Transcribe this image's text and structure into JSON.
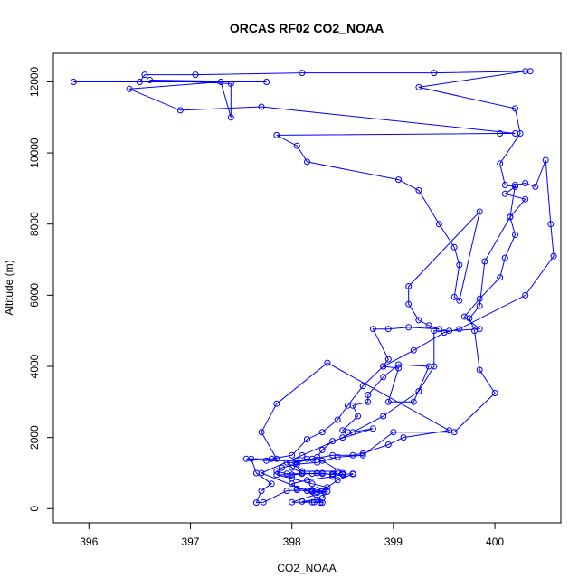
{
  "chart_data": {
    "type": "scatter",
    "title": "ORCAS RF02 CO2_NOAA",
    "xlabel": "CO2_NOAA",
    "ylabel": "Altitude (m)",
    "xlim": [
      395.65,
      400.65
    ],
    "ylim": [
      -400,
      12800
    ],
    "xticks": [
      396,
      397,
      398,
      399,
      400
    ],
    "yticks": [
      0,
      2000,
      4000,
      6000,
      8000,
      10000,
      12000
    ],
    "grid": false,
    "legend": "none",
    "color": "#0000ff",
    "marker": "open-circle",
    "connected": true,
    "series": [
      {
        "points": [
          [
            398.28,
            170
          ],
          [
            398.22,
            180
          ],
          [
            398.1,
            200
          ],
          [
            398.25,
            250
          ],
          [
            398.3,
            300
          ],
          [
            398.35,
            480
          ],
          [
            398.2,
            520
          ],
          [
            398.05,
            560
          ],
          [
            398.0,
            700
          ],
          [
            398.15,
            800
          ],
          [
            398.4,
            900
          ],
          [
            398.5,
            960
          ],
          [
            398.3,
            980
          ],
          [
            398.1,
            980
          ],
          [
            397.95,
            980
          ],
          [
            397.85,
            1050
          ],
          [
            397.9,
            1150
          ],
          [
            398.05,
            1250
          ],
          [
            398.25,
            1300
          ],
          [
            398.45,
            1450
          ],
          [
            398.7,
            1500
          ],
          [
            399.0,
            2150
          ],
          [
            399.6,
            2150
          ],
          [
            400.0,
            3250
          ],
          [
            399.85,
            3900
          ],
          [
            399.8,
            5000
          ],
          [
            399.75,
            5350
          ],
          [
            399.85,
            5700
          ],
          [
            399.9,
            6950
          ],
          [
            400.15,
            8200
          ],
          [
            400.2,
            9100
          ],
          [
            400.3,
            9150
          ],
          [
            400.4,
            9050
          ],
          [
            400.5,
            9800
          ],
          [
            400.55,
            8000
          ],
          [
            400.58,
            7100
          ],
          [
            400.3,
            6000
          ],
          [
            399.65,
            5050
          ],
          [
            399.5,
            4950
          ],
          [
            399.2,
            4450
          ],
          [
            398.9,
            4000
          ],
          [
            398.7,
            3450
          ],
          [
            398.55,
            2900
          ],
          [
            398.45,
            2500
          ],
          [
            398.3,
            2150
          ],
          [
            398.15,
            1950
          ],
          [
            398.0,
            1500
          ],
          [
            397.8,
            1400
          ],
          [
            397.6,
            1400
          ],
          [
            397.65,
            1000
          ],
          [
            397.8,
            700
          ],
          [
            397.7,
            500
          ],
          [
            397.65,
            170
          ],
          [
            397.72,
            180
          ],
          [
            397.95,
            500
          ],
          [
            398.05,
            520
          ],
          [
            398.2,
            480
          ],
          [
            398.32,
            470
          ],
          [
            398.0,
            180
          ],
          [
            398.2,
            180
          ],
          [
            398.3,
            170
          ],
          [
            398.15,
            500
          ],
          [
            397.7,
            1000
          ],
          [
            398.1,
            1500
          ],
          [
            398.5,
            2000
          ],
          [
            398.9,
            2600
          ],
          [
            399.25,
            3300
          ],
          [
            399.4,
            4000
          ],
          [
            399.4,
            5000
          ],
          [
            399.55,
            5000
          ],
          [
            399.85,
            5050
          ],
          [
            399.7,
            5400
          ],
          [
            399.85,
            5900
          ],
          [
            400.05,
            6500
          ],
          [
            400.1,
            7050
          ],
          [
            400.2,
            7700
          ],
          [
            400.15,
            8200
          ],
          [
            400.3,
            8700
          ],
          [
            400.1,
            8850
          ],
          [
            400.2,
            9050
          ],
          [
            400.1,
            9100
          ],
          [
            400.05,
            9700
          ],
          [
            400.25,
            10550
          ],
          [
            400.2,
            11250
          ],
          [
            399.25,
            11850
          ],
          [
            400.3,
            12300
          ],
          [
            400.35,
            12300
          ],
          [
            399.4,
            12250
          ],
          [
            398.1,
            12250
          ],
          [
            397.05,
            12200
          ],
          [
            396.55,
            12200
          ],
          [
            396.5,
            12000
          ],
          [
            395.85,
            12000
          ],
          [
            397.75,
            12000
          ],
          [
            396.6,
            12050
          ],
          [
            397.4,
            11950
          ],
          [
            397.4,
            11000
          ],
          [
            397.3,
            12000
          ],
          [
            396.4,
            11800
          ],
          [
            396.9,
            11200
          ],
          [
            397.7,
            11300
          ],
          [
            400.2,
            10550
          ],
          [
            400.05,
            10550
          ],
          [
            397.85,
            10500
          ],
          [
            398.05,
            10200
          ],
          [
            398.15,
            9750
          ],
          [
            399.05,
            9250
          ],
          [
            399.25,
            8950
          ],
          [
            399.45,
            8000
          ],
          [
            399.6,
            7350
          ],
          [
            399.65,
            6850
          ],
          [
            399.6,
            5950
          ],
          [
            399.65,
            5850
          ],
          [
            399.85,
            8350
          ],
          [
            399.15,
            6250
          ],
          [
            399.15,
            5750
          ],
          [
            399.25,
            5300
          ],
          [
            399.35,
            5150
          ],
          [
            399.45,
            5050
          ],
          [
            399.15,
            5100
          ],
          [
            398.95,
            5050
          ],
          [
            398.8,
            5050
          ],
          [
            398.95,
            4200
          ],
          [
            398.9,
            4000
          ],
          [
            399.05,
            3950
          ],
          [
            398.95,
            3000
          ],
          [
            399.2,
            3000
          ],
          [
            399.35,
            4000
          ],
          [
            399.05,
            4050
          ],
          [
            398.9,
            3700
          ],
          [
            398.75,
            3200
          ],
          [
            398.75,
            3000
          ],
          [
            398.6,
            2900
          ],
          [
            398.65,
            2600
          ],
          [
            398.5,
            2200
          ],
          [
            398.55,
            2150
          ],
          [
            398.6,
            2150
          ],
          [
            398.8,
            2250
          ],
          [
            398.4,
            1900
          ],
          [
            398.3,
            1650
          ],
          [
            398.25,
            1450
          ],
          [
            398.2,
            1400
          ],
          [
            398.05,
            1300
          ],
          [
            397.95,
            1300
          ],
          [
            398.0,
            1150
          ],
          [
            398.1,
            1000
          ],
          [
            398.2,
            980
          ],
          [
            398.5,
            960
          ],
          [
            398.4,
            980
          ],
          [
            398.45,
            1050
          ],
          [
            398.1,
            1050
          ],
          [
            398.0,
            1300
          ],
          [
            398.4,
            1500
          ],
          [
            398.6,
            1500
          ],
          [
            398.7,
            1550
          ],
          [
            398.95,
            1800
          ],
          [
            399.1,
            2000
          ],
          [
            399.55,
            2200
          ],
          [
            398.35,
            4100
          ],
          [
            397.85,
            2950
          ],
          [
            397.7,
            2150
          ],
          [
            397.85,
            1400
          ],
          [
            397.55,
            1400
          ],
          [
            397.75,
            1350
          ],
          [
            398.05,
            1350
          ],
          [
            398.15,
            1400
          ],
          [
            398.3,
            1350
          ],
          [
            398.5,
            1000
          ],
          [
            398.5,
            960
          ],
          [
            398.6,
            980
          ],
          [
            398.6,
            970
          ],
          [
            398.45,
            800
          ],
          [
            398.3,
            500
          ],
          [
            398.25,
            450
          ],
          [
            398.2,
            500
          ],
          [
            398.25,
            520
          ],
          [
            398.35,
            600
          ],
          [
            398.2,
            700
          ],
          [
            398.0,
            850
          ],
          [
            397.85,
            950
          ],
          [
            398.0,
            950
          ],
          [
            398.25,
            1000
          ],
          [
            398.3,
            1000
          ],
          [
            398.4,
            950
          ]
        ]
      }
    ]
  }
}
